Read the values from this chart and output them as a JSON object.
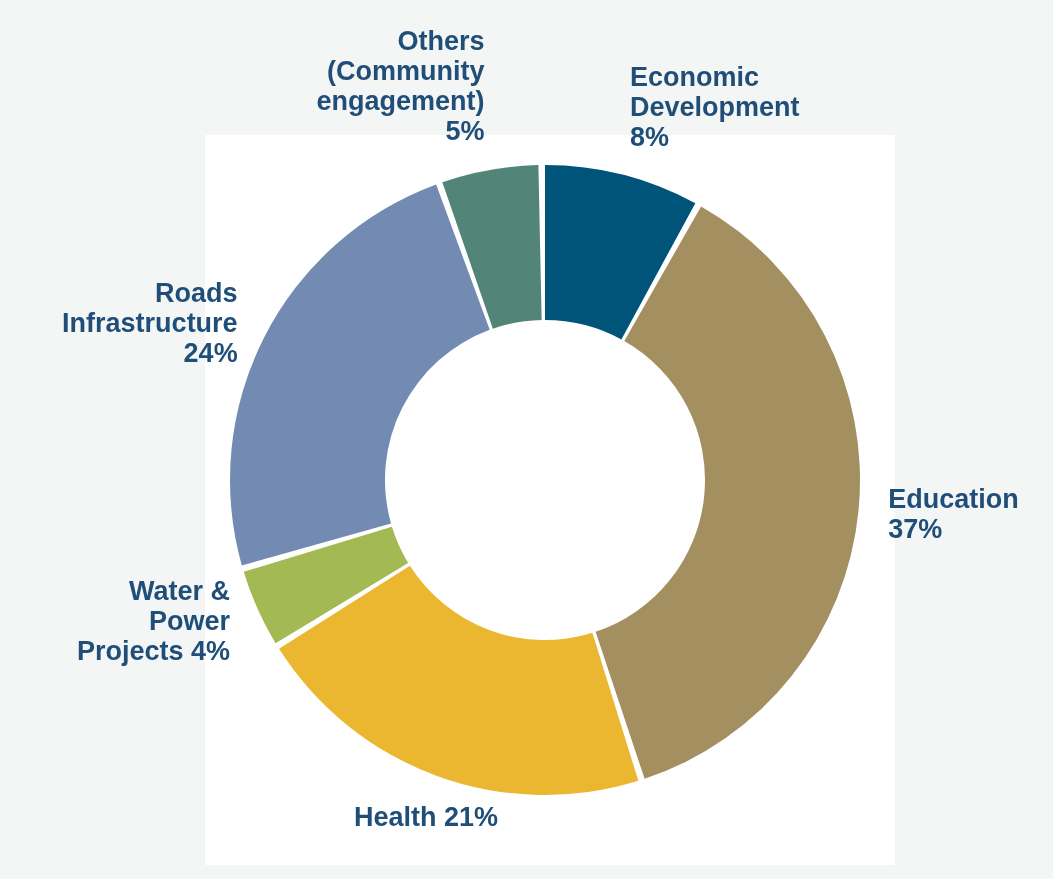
{
  "chart_data": {
    "type": "donut",
    "categories": [
      "Economic Development",
      "Education",
      "Health",
      "Water & Power Projects",
      "Roads Infrastructure",
      "Others (Community engagement)"
    ],
    "values": [
      8,
      37,
      21,
      4,
      24,
      5
    ],
    "value_labels": [
      "8%",
      "37%",
      "21%",
      "4%",
      "24%",
      "5%"
    ],
    "colors": [
      "#00547a",
      "#a38f60",
      "#ebb630",
      "#a3b954",
      "#738bb2",
      "#528577"
    ]
  }
}
